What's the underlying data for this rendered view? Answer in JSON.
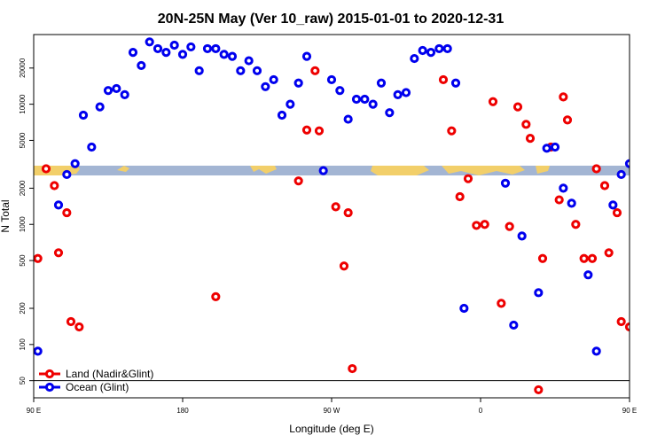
{
  "chart_data": {
    "type": "scatter",
    "title": "20N-25N May (Ver 10_raw)   2015-01-01 to 2020-12-31",
    "xlabel": "Longitude (deg E)",
    "ylabel": "N Total",
    "y_scale": "log",
    "xlim": [
      90,
      450
    ],
    "ylim": [
      36,
      38000
    ],
    "x_ticks": [
      {
        "value": 90,
        "label": "90 E"
      },
      {
        "value": 180,
        "label": "180"
      },
      {
        "value": 270,
        "label": "90 W"
      },
      {
        "value": 360,
        "label": "0"
      },
      {
        "value": 450,
        "label": "90 E"
      },
      {
        "value": 540,
        "label": "180"
      }
    ],
    "y_ticks": [
      {
        "value": 50,
        "label": "50"
      },
      {
        "value": 100,
        "label": "100"
      },
      {
        "value": 200,
        "label": "200"
      },
      {
        "value": 500,
        "label": "500"
      },
      {
        "value": 1000,
        "label": "1000"
      },
      {
        "value": 2000,
        "label": "2000"
      },
      {
        "value": 5000,
        "label": "5000"
      },
      {
        "value": 10000,
        "label": "10000"
      },
      {
        "value": 20000,
        "label": "20000"
      }
    ],
    "legend_position": "bottom-left",
    "series": [
      {
        "name": "Land (Nadir&Glint)",
        "color": "#ee0000",
        "points": [
          [
            92.5,
            520
          ],
          [
            97.5,
            2900
          ],
          [
            102.5,
            2100
          ],
          [
            105,
            580
          ],
          [
            110,
            1250
          ],
          [
            112.5,
            155
          ],
          [
            117.5,
            140
          ],
          [
            200,
            250
          ],
          [
            250,
            2300
          ],
          [
            255,
            6100
          ],
          [
            260,
            19000
          ],
          [
            262.5,
            6000
          ],
          [
            272.5,
            1400
          ],
          [
            277.5,
            450
          ],
          [
            280,
            1250
          ],
          [
            282.5,
            63
          ],
          [
            337.5,
            16000
          ],
          [
            342.5,
            6000
          ],
          [
            347.5,
            1700
          ],
          [
            352.5,
            2400
          ],
          [
            357.5,
            980
          ],
          [
            362.5,
            1000
          ],
          [
            367.5,
            10500
          ],
          [
            372.5,
            220
          ],
          [
            377.5,
            960
          ],
          [
            382.5,
            9500
          ],
          [
            387.5,
            6800
          ],
          [
            390,
            5200
          ],
          [
            395,
            42
          ],
          [
            397.5,
            520
          ],
          [
            402.5,
            4400
          ],
          [
            407.5,
            1600
          ],
          [
            410,
            11500
          ],
          [
            412.5,
            7400
          ],
          [
            417.5,
            1000
          ],
          [
            422.5,
            520
          ],
          [
            427.5,
            520
          ],
          [
            430,
            2900
          ],
          [
            435,
            2100
          ],
          [
            437.5,
            580
          ],
          [
            442.5,
            1250
          ],
          [
            445,
            155
          ],
          [
            450,
            140
          ]
        ]
      },
      {
        "name": "Ocean (Glint)",
        "color": "#0000ee",
        "points": [
          [
            92.5,
            88
          ],
          [
            105,
            1450
          ],
          [
            110,
            2600
          ],
          [
            115,
            3200
          ],
          [
            120,
            8100
          ],
          [
            125,
            4400
          ],
          [
            130,
            9500
          ],
          [
            135,
            13000
          ],
          [
            140,
            13500
          ],
          [
            145,
            12000
          ],
          [
            150,
            27000
          ],
          [
            155,
            21000
          ],
          [
            160,
            33000
          ],
          [
            165,
            29000
          ],
          [
            170,
            27000
          ],
          [
            175,
            31000
          ],
          [
            180,
            26000
          ],
          [
            185,
            30000
          ],
          [
            190,
            19000
          ],
          [
            195,
            29000
          ],
          [
            200,
            29000
          ],
          [
            205,
            26000
          ],
          [
            210,
            25000
          ],
          [
            215,
            19000
          ],
          [
            220,
            23000
          ],
          [
            225,
            19000
          ],
          [
            230,
            14000
          ],
          [
            235,
            16000
          ],
          [
            240,
            8100
          ],
          [
            245,
            10000
          ],
          [
            250,
            15000
          ],
          [
            255,
            25000
          ],
          [
            265,
            2800
          ],
          [
            270,
            16000
          ],
          [
            275,
            13000
          ],
          [
            280,
            7500
          ],
          [
            285,
            11000
          ],
          [
            290,
            11000
          ],
          [
            295,
            10000
          ],
          [
            300,
            15000
          ],
          [
            305,
            8500
          ],
          [
            310,
            12000
          ],
          [
            315,
            12500
          ],
          [
            320,
            24000
          ],
          [
            325,
            28000
          ],
          [
            330,
            27000
          ],
          [
            335,
            29000
          ],
          [
            340,
            29000
          ],
          [
            345,
            15000
          ],
          [
            350,
            200
          ],
          [
            375,
            2200
          ],
          [
            380,
            145
          ],
          [
            385,
            800
          ],
          [
            395,
            270
          ],
          [
            400,
            4300
          ],
          [
            405,
            4400
          ],
          [
            410,
            2000
          ],
          [
            415,
            1500
          ],
          [
            425,
            380
          ],
          [
            430,
            88
          ],
          [
            440,
            1450
          ],
          [
            445,
            2600
          ],
          [
            450,
            3200
          ]
        ]
      }
    ]
  }
}
